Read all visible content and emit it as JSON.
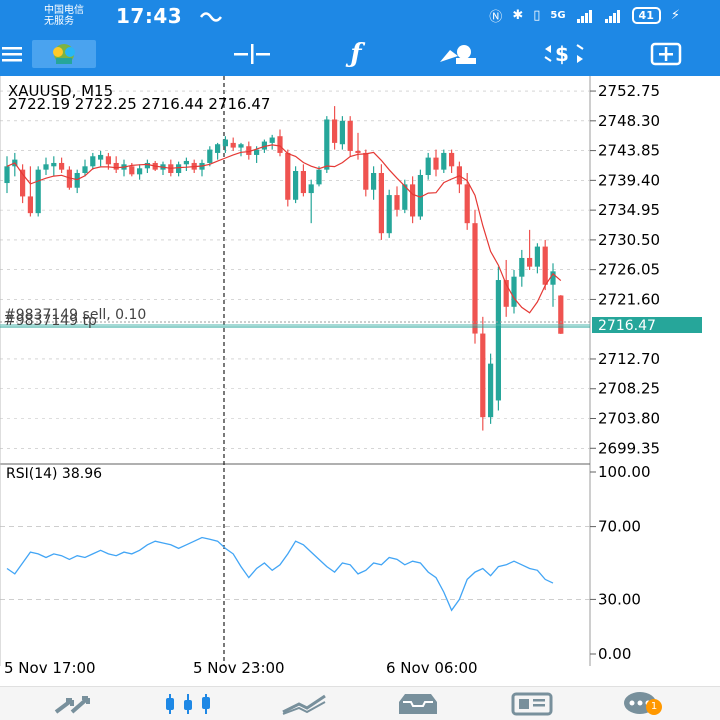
{
  "status_bar": {
    "carrier_line1": "中国电信",
    "carrier_line2": "无服务",
    "time": "17:43",
    "network": "5G",
    "battery": "41"
  },
  "toolbar": {
    "icons": [
      "menu-icon",
      "app-logo",
      "crosshair-icon",
      "indicators-icon",
      "objects-icon",
      "timeframe-icon",
      "new-order-icon"
    ]
  },
  "chart": {
    "symbol_timeframe": "XAUUSD, M15",
    "ohlc": "2722.19 2722.25 2716.44 2716.47",
    "order_label_1": "#9837149 sell, 0.10",
    "order_label_2": "#9837149 tp",
    "current_price": "2716.47",
    "price_ticks": [
      "2752.75",
      "2748.30",
      "2743.85",
      "2739.40",
      "2734.95",
      "2730.50",
      "2726.05",
      "2721.60",
      "2712.70",
      "2708.25",
      "2703.80",
      "2699.35"
    ],
    "time_labels": [
      "5 Nov 17:00",
      "5 Nov 23:00",
      "6 Nov 06:00"
    ],
    "colors": {
      "bull": "#26a69a",
      "bear": "#ef5350",
      "ma": "#e53935",
      "rsi": "#42a5f5",
      "grid": "#bdbdbd"
    }
  },
  "rsi": {
    "label": "RSI(14) 38.96",
    "ticks": [
      "100.00",
      "70.00",
      "30.00",
      "0.00"
    ]
  },
  "bottom_nav": {
    "items": [
      "quotes-icon",
      "chart-icon",
      "trade-icon",
      "history-icon",
      "news-icon",
      "messages-icon"
    ],
    "badge": "1"
  },
  "chart_data": {
    "type": "candlestick",
    "symbol": "XAUUSD",
    "timeframe": "M15",
    "ylim": [
      2697,
      2755
    ],
    "candles": [
      [
        2739.0,
        2743.0,
        2737.5,
        2741.5
      ],
      [
        2741.5,
        2743.5,
        2740.0,
        2742.5
      ],
      [
        2741.0,
        2741.8,
        2736.0,
        2737.0
      ],
      [
        2737.0,
        2741.5,
        2734.0,
        2734.5
      ],
      [
        2734.5,
        2741.5,
        2734.0,
        2741.0
      ],
      [
        2741.0,
        2742.8,
        2740.2,
        2741.8
      ],
      [
        2741.5,
        2743.0,
        2740.0,
        2742.0
      ],
      [
        2742.0,
        2742.8,
        2740.5,
        2741.0
      ],
      [
        2741.0,
        2741.5,
        2738.0,
        2738.3
      ],
      [
        2738.3,
        2741.0,
        2737.5,
        2740.5
      ],
      [
        2740.5,
        2742.5,
        2740.0,
        2741.5
      ],
      [
        2741.5,
        2743.5,
        2741.0,
        2743.0
      ],
      [
        2742.5,
        2743.8,
        2741.5,
        2743.2
      ],
      [
        2743.0,
        2743.5,
        2741.0,
        2741.8
      ],
      [
        2742.0,
        2743.0,
        2740.5,
        2741.0
      ],
      [
        2741.0,
        2742.5,
        2740.0,
        2741.8
      ],
      [
        2741.5,
        2742.0,
        2740.0,
        2740.3
      ],
      [
        2740.3,
        2741.8,
        2739.5,
        2741.2
      ],
      [
        2741.2,
        2742.5,
        2740.5,
        2742.0
      ],
      [
        2742.0,
        2742.3,
        2740.8,
        2741.0
      ],
      [
        2741.0,
        2742.2,
        2740.2,
        2741.8
      ],
      [
        2741.8,
        2742.5,
        2740.0,
        2740.5
      ],
      [
        2740.5,
        2742.2,
        2740.0,
        2741.8
      ],
      [
        2741.8,
        2742.8,
        2740.8,
        2742.3
      ],
      [
        2742.0,
        2742.5,
        2740.5,
        2741.0
      ],
      [
        2741.0,
        2742.5,
        2740.0,
        2742.0
      ],
      [
        2742.0,
        2744.5,
        2741.5,
        2744.0
      ],
      [
        2743.5,
        2745.0,
        2742.5,
        2744.8
      ],
      [
        2744.5,
        2746.0,
        2743.5,
        2745.5
      ],
      [
        2745.0,
        2745.8,
        2743.8,
        2744.3
      ],
      [
        2744.3,
        2745.0,
        2743.0,
        2744.8
      ],
      [
        2744.5,
        2745.2,
        2742.5,
        2743.2
      ],
      [
        2743.2,
        2744.5,
        2742.0,
        2744.0
      ],
      [
        2744.0,
        2745.5,
        2743.5,
        2745.2
      ],
      [
        2745.0,
        2746.2,
        2744.0,
        2745.8
      ],
      [
        2746.0,
        2747.0,
        2743.0,
        2743.5
      ],
      [
        2743.5,
        2744.0,
        2735.5,
        2736.5
      ],
      [
        2736.5,
        2741.5,
        2736.0,
        2740.8
      ],
      [
        2740.8,
        2741.8,
        2737.0,
        2737.5
      ],
      [
        2737.5,
        2739.5,
        2733.0,
        2738.8
      ],
      [
        2738.8,
        2741.5,
        2738.5,
        2741.0
      ],
      [
        2741.0,
        2749.0,
        2740.5,
        2748.5
      ],
      [
        2748.5,
        2750.5,
        2744.0,
        2745.0
      ],
      [
        2744.8,
        2749.0,
        2744.0,
        2748.3
      ],
      [
        2748.3,
        2749.0,
        2743.0,
        2743.8
      ],
      [
        2743.8,
        2746.5,
        2742.5,
        2743.5
      ],
      [
        2743.5,
        2744.0,
        2737.0,
        2738.0
      ],
      [
        2738.0,
        2741.5,
        2736.5,
        2740.5
      ],
      [
        2740.5,
        2741.8,
        2730.5,
        2731.5
      ],
      [
        2731.5,
        2738.0,
        2730.8,
        2737.2
      ],
      [
        2737.2,
        2738.5,
        2734.0,
        2735.0
      ],
      [
        2735.0,
        2739.5,
        2734.5,
        2738.8
      ],
      [
        2738.8,
        2740.0,
        2733.0,
        2734.0
      ],
      [
        2734.0,
        2741.0,
        2733.5,
        2740.2
      ],
      [
        2740.2,
        2743.5,
        2739.5,
        2742.8
      ],
      [
        2742.8,
        2744.0,
        2740.0,
        2741.0
      ],
      [
        2741.0,
        2744.0,
        2740.5,
        2743.5
      ],
      [
        2743.5,
        2744.0,
        2740.5,
        2741.5
      ],
      [
        2741.5,
        2742.2,
        2737.5,
        2738.8
      ],
      [
        2738.8,
        2740.5,
        2732.0,
        2733.0
      ],
      [
        2733.0,
        2735.0,
        2715.0,
        2716.5
      ],
      [
        2716.5,
        2719.0,
        2702.0,
        2704.0
      ],
      [
        2704.0,
        2713.5,
        2703.0,
        2712.0
      ],
      [
        2706.5,
        2726.5,
        2705.0,
        2724.5
      ],
      [
        2724.5,
        2727.5,
        2719.0,
        2720.5
      ],
      [
        2720.5,
        2726.0,
        2719.5,
        2725.0
      ],
      [
        2725.0,
        2729.0,
        2723.5,
        2727.8
      ],
      [
        2727.8,
        2732.0,
        2726.0,
        2726.5
      ],
      [
        2726.5,
        2730.0,
        2725.5,
        2729.5
      ],
      [
        2729.5,
        2730.5,
        2723.0,
        2723.8
      ],
      [
        2723.8,
        2727.0,
        2720.5,
        2725.8
      ],
      [
        2722.19,
        2722.25,
        2716.44,
        2716.47
      ]
    ],
    "rsi_values": [
      47,
      44,
      50,
      56,
      55,
      53,
      55,
      54,
      52,
      54,
      53,
      55,
      57,
      55,
      54,
      56,
      55,
      57,
      60,
      62,
      61,
      60,
      58,
      60,
      62,
      64,
      63,
      62,
      58,
      55,
      48,
      42,
      47,
      50,
      46,
      49,
      55,
      62,
      60,
      56,
      52,
      48,
      45,
      50,
      49,
      44,
      46,
      50,
      49,
      53,
      52,
      49,
      51,
      50,
      45,
      42,
      34,
      24,
      30,
      41,
      45,
      47,
      43,
      48,
      49,
      51,
      49,
      47,
      46,
      41,
      38.96
    ],
    "rsi_levels": [
      70,
      30
    ]
  }
}
